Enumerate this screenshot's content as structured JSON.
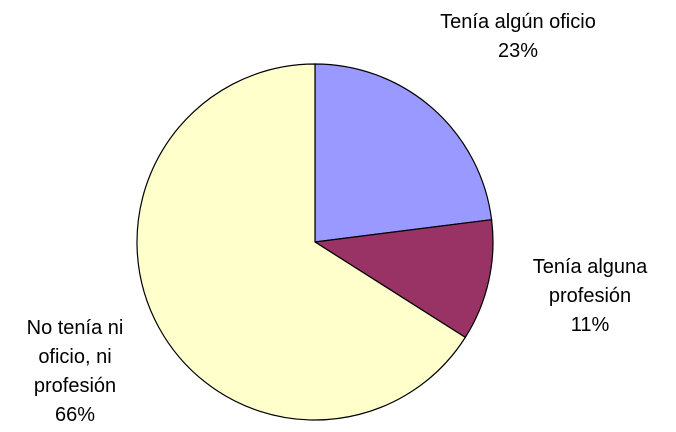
{
  "chart_data": {
    "type": "pie",
    "categories": [
      "Tenía algún oficio",
      "Tenía alguna profesión",
      "No tenía ni oficio, ni profesión"
    ],
    "values": [
      23,
      11,
      66
    ],
    "value_labels": [
      "23%",
      "11%",
      "66%"
    ],
    "colors": [
      "#9999ff",
      "#993366",
      "#ffffcc"
    ]
  }
}
